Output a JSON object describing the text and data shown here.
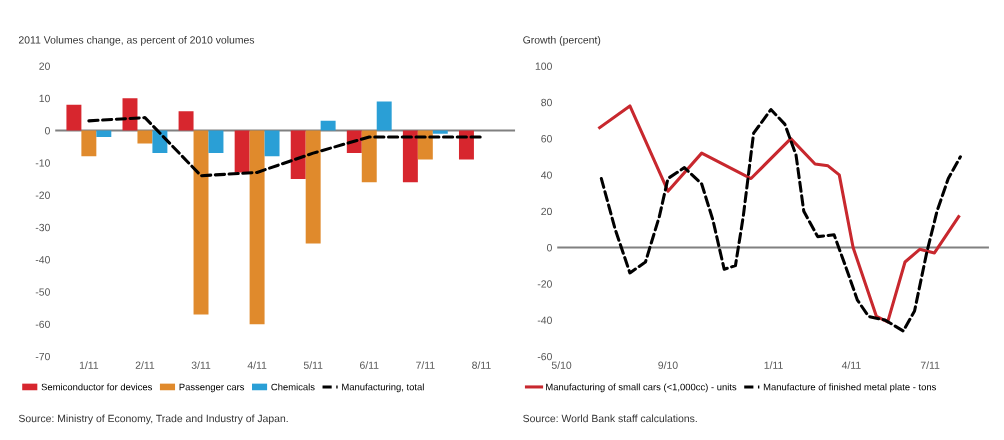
{
  "chart_data": [
    {
      "type": "bar",
      "ylabel": "2011 Volumes change, as percent of 2010 volumes",
      "categories": [
        "1/11",
        "2/11",
        "3/11",
        "4/11",
        "5/11",
        "6/11",
        "7/11",
        "8/11"
      ],
      "series": [
        {
          "name": "Semiconductor for devices",
          "color": "#d7262e",
          "values": [
            8,
            10,
            6,
            -13,
            -15,
            -7,
            -16,
            -9
          ]
        },
        {
          "name": "Passenger cars",
          "color": "#e08a2c",
          "values": [
            -8,
            -4,
            -57,
            -60,
            -35,
            -16,
            -9,
            null
          ]
        },
        {
          "name": "Chemicals",
          "color": "#2a9fd6",
          "values": [
            -2,
            -7,
            -7,
            -8,
            3,
            9,
            -1,
            null
          ]
        },
        {
          "name": "Manufacturing, total",
          "type": "line",
          "color": "#000000",
          "line_style": "dashed",
          "values": [
            3,
            4,
            -14,
            -13,
            -7,
            -2,
            -2,
            -2
          ]
        }
      ],
      "ylim": [
        -70,
        20
      ],
      "yticks": [
        20,
        10,
        0,
        -10,
        -20,
        -30,
        -40,
        -50,
        -60,
        -70
      ],
      "grid": false,
      "legend": "bottom",
      "ref_lines": [
        {
          "axis": "y",
          "value": 0,
          "color": "#808080"
        }
      ],
      "annotations": [
        "Source: Ministry of Economy, Trade and Industry of Japan."
      ]
    },
    {
      "type": "line",
      "ylabel": "Growth (percent)",
      "series": [
        {
          "name": "Manufacturing of small cars (<1,000cc) - units",
          "color": "#c8282e",
          "line_style": "solid",
          "x": [
            "2010-06-14",
            "2010-07-19",
            "2010-09-01",
            "2010-10-10",
            "2010-12-06",
            "2011-01-21",
            "2011-02-18",
            "2011-03-05",
            "2011-03-18",
            "2011-04-03",
            "2011-04-30",
            "2011-05-13",
            "2011-06-02",
            "2011-06-19",
            "2011-07-06",
            "2011-08-03"
          ],
          "values": [
            66,
            78,
            31,
            52,
            38,
            60,
            46,
            45,
            40,
            0,
            -38,
            -41,
            -8,
            -1,
            -3,
            17
          ]
        },
        {
          "name": "Manufacture of finished metal plate - tons",
          "color": "#000000",
          "line_style": "dashed",
          "x": [
            "2010-06-16",
            "2010-07-02",
            "2010-07-19",
            "2010-08-06",
            "2010-08-22",
            "2010-09-01",
            "2010-09-20",
            "2010-10-10",
            "2010-10-23",
            "2010-11-05",
            "2010-11-18",
            "2010-11-27",
            "2010-12-09",
            "2010-12-29",
            "2011-01-14",
            "2011-01-27",
            "2011-02-05",
            "2011-02-21",
            "2011-03-12",
            "2011-03-25",
            "2011-04-08",
            "2011-04-21",
            "2011-05-10",
            "2011-05-31",
            "2011-06-13",
            "2011-06-27",
            "2011-07-09",
            "2011-07-22",
            "2011-08-05"
          ],
          "values": [
            38,
            10,
            -14,
            -8,
            17,
            38,
            44,
            35,
            15,
            -12,
            -10,
            17,
            63,
            76,
            68,
            51,
            20,
            6,
            7,
            -10,
            -29,
            -38,
            -40,
            -46,
            -35,
            -3,
            20,
            38,
            50
          ]
        }
      ],
      "xlim": [
        "2010-04-26",
        "2011-09-07"
      ],
      "xticks": [
        {
          "value": "2010-05-01",
          "label": "5/10"
        },
        {
          "value": "2010-09-01",
          "label": "9/10"
        },
        {
          "value": "2011-01-01",
          "label": "1/11"
        },
        {
          "value": "2011-04-01",
          "label": "4/11"
        },
        {
          "value": "2011-07-01",
          "label": "7/11"
        }
      ],
      "ylim": [
        -60,
        100
      ],
      "yticks": [
        100,
        80,
        60,
        40,
        20,
        0,
        -20,
        -40,
        -60
      ],
      "grid": false,
      "legend": "bottom",
      "ref_lines": [
        {
          "axis": "y",
          "value": 0,
          "color": "#808080"
        }
      ],
      "annotations": [
        "Source: World Bank staff calculations."
      ]
    }
  ]
}
